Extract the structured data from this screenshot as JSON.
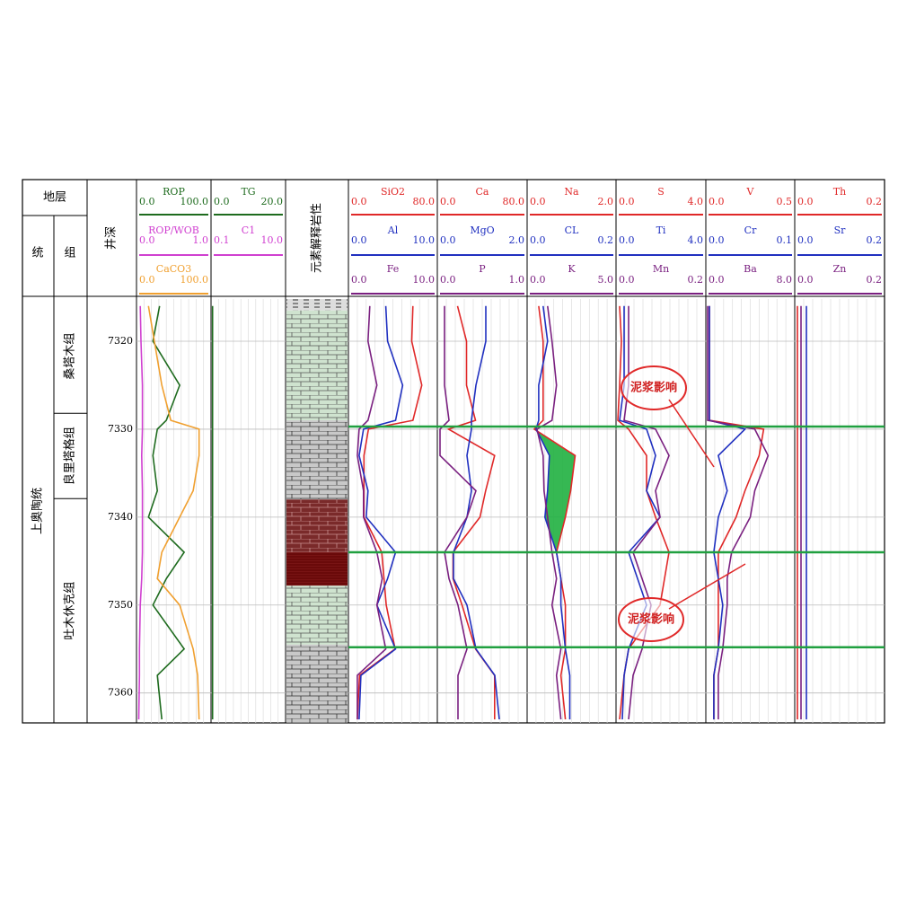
{
  "header": {
    "strata": "地层",
    "series_col": "统",
    "formation_col": "组",
    "depth": "井深",
    "lithology": "元素解释岩性"
  },
  "chart_data": {
    "type": "well-log",
    "depths": [
      7316,
      7320,
      7325,
      7329,
      7330,
      7333,
      7337,
      7340,
      7344,
      7347,
      7350,
      7355,
      7358,
      7363
    ],
    "ylim": [
      7315.2,
      7363.4
    ],
    "yticks": [
      7320,
      7330,
      7340,
      7350,
      7360
    ],
    "series_name": "上奥陶统",
    "formations": [
      {
        "name": "桑塔木组",
        "top": 7315.2,
        "bottom": 7328.2
      },
      {
        "name": "良里塔格组",
        "top": 7328.2,
        "bottom": 7337.9
      },
      {
        "name": "吐木休克组",
        "top": 7337.9,
        "bottom": 7363.4
      }
    ],
    "markers": [
      7329.7,
      7344,
      7354.8
    ],
    "lithology": [
      {
        "top": 7315.2,
        "bottom": 7316.5,
        "pattern": "dash"
      },
      {
        "top": 7316.5,
        "bottom": 7329,
        "pattern": "green"
      },
      {
        "top": 7329,
        "bottom": 7338,
        "pattern": "gray"
      },
      {
        "top": 7338,
        "bottom": 7344,
        "pattern": "red"
      },
      {
        "top": 7344,
        "bottom": 7347.8,
        "pattern": "maroon"
      },
      {
        "top": 7347.8,
        "bottom": 7354.5,
        "pattern": "green"
      },
      {
        "top": 7354.5,
        "bottom": 7363.4,
        "pattern": "gray"
      }
    ],
    "annotations": [
      {
        "text": "泥浆影响"
      },
      {
        "text": "泥浆影响"
      }
    ],
    "tracks": [
      {
        "curves": [
          {
            "name": "ROP",
            "color": "#1e6b1e",
            "min": {
              "value": 0,
              "label": "0.0"
            },
            "max": {
              "value": 100,
              "label": "100.0"
            },
            "values": [
              31,
              22,
              58,
              40,
              28,
              22,
              28,
              16,
              64,
              40,
              22,
              64,
              28,
              34
            ]
          },
          {
            "name": "ROP/WOB",
            "color": "#d040d0",
            "min": {
              "value": 0,
              "label": "0.0"
            },
            "max": {
              "value": 1,
              "label": "1.0"
            },
            "values": [
              0.05,
              0.06,
              0.08,
              0.08,
              0.08,
              0.07,
              0.08,
              0.08,
              0.08,
              0.07,
              0.05,
              0.04,
              0.04,
              0.03
            ]
          },
          {
            "name": "CaCO3",
            "color": "#f0a030",
            "min": {
              "value": 0,
              "label": "0.0"
            },
            "max": {
              "value": 100,
              "label": "100.0"
            },
            "values": [
              16,
              24,
              34,
              46,
              84,
              84,
              76,
              58,
              34,
              28,
              58,
              76,
              82,
              84
            ]
          }
        ]
      },
      {
        "curves": [
          {
            "name": "TG",
            "color": "#1e6b1e",
            "min": {
              "value": 0,
              "label": "0.0"
            },
            "max": {
              "value": 20,
              "label": "20.0"
            },
            "values": [
              0.4,
              0.4,
              0.4,
              0.4,
              0.4,
              0.4,
              0.4,
              0.4,
              0.4,
              0.4,
              0.4,
              0.4,
              0.4,
              0.4
            ]
          },
          {
            "name": "C1",
            "color": "#d040d0",
            "min": {
              "value": 0.1,
              "label": "0.1"
            },
            "max": {
              "value": 10,
              "label": "10.0"
            },
            "values": []
          }
        ]
      },
      {
        "curves": [
          {
            "name": "SiO2",
            "color": "#e02828",
            "min": {
              "value": 0,
              "label": "0.0"
            },
            "max": {
              "value": 80,
              "label": "80.0"
            },
            "values": [
              58,
              57,
              66,
              58,
              18,
              14,
              14,
              14,
              30,
              32,
              34,
              42,
              10,
              8
            ]
          },
          {
            "name": "Al",
            "color": "#2030c0",
            "min": {
              "value": 0,
              "label": "0.0"
            },
            "max": {
              "value": 10,
              "label": "10.0"
            },
            "values": [
              4.2,
              4.4,
              6.1,
              5.3,
              1.7,
              1.2,
              2.2,
              2.0,
              5.3,
              4.4,
              3.2,
              5.3,
              1.4,
              1.2
            ]
          },
          {
            "name": "Fe",
            "color": "#7a2080",
            "min": {
              "value": 0,
              "label": "0.0"
            },
            "max": {
              "value": 10,
              "label": "10.0"
            },
            "values": [
              2.4,
              2.2,
              3.2,
              2.2,
              1.2,
              1.0,
              1.7,
              1.7,
              3.2,
              3.8,
              3.2,
              4.2,
              1.0,
              1.0
            ]
          }
        ]
      },
      {
        "curves": [
          {
            "name": "Ca",
            "color": "#e02828",
            "min": {
              "value": 0,
              "label": "0.0"
            },
            "max": {
              "value": 80,
              "label": "80.0"
            },
            "values": [
              18,
              26,
              26,
              34,
              10,
              51,
              43,
              38,
              14,
              14,
              22,
              34,
              51,
              51
            ]
          },
          {
            "name": "MgO",
            "color": "#2030c0",
            "min": {
              "value": 0,
              "label": "0.0"
            },
            "max": {
              "value": 2,
              "label": "2.0"
            },
            "values": [
              1.08,
              1.08,
              0.86,
              0.76,
              0.76,
              0.66,
              0.76,
              0.66,
              0.36,
              0.36,
              0.66,
              0.86,
              1.28,
              1.38
            ]
          },
          {
            "name": "P",
            "color": "#7a2080",
            "min": {
              "value": 0,
              "label": "0.0"
            },
            "max": {
              "value": 1,
              "label": "1.0"
            },
            "values": [
              0.08,
              0.08,
              0.08,
              0.13,
              0.03,
              0.03,
              0.43,
              0.33,
              0.08,
              0.13,
              0.23,
              0.33,
              0.23,
              0.23
            ]
          }
        ]
      },
      {
        "curves": [
          {
            "name": "Na",
            "color": "#e02828",
            "min": {
              "value": 0,
              "label": "0.0"
            },
            "max": {
              "value": 2,
              "label": "2.0"
            },
            "values": [
              0.26,
              0.36,
              0.36,
              0.36,
              0.16,
              1.08,
              0.98,
              0.86,
              0.66,
              0.76,
              0.86,
              0.86,
              0.76,
              0.86
            ]
          },
          {
            "name": "CL",
            "color": "#2030c0",
            "min": {
              "value": 0,
              "label": "0.0"
            },
            "max": {
              "value": 0.2,
              "label": "0.2"
            },
            "values": [
              0.036,
              0.046,
              0.026,
              0.026,
              0.02,
              0.05,
              0.046,
              0.04,
              0.066,
              0.076,
              0.076,
              0.086,
              0.096,
              0.096
            ]
          },
          {
            "name": "K",
            "color": "#7a2080",
            "min": {
              "value": 0,
              "label": "0.0"
            },
            "max": {
              "value": 5,
              "label": "5.0"
            },
            "values": [
              1.15,
              1.4,
              1.65,
              1.4,
              0.55,
              0.9,
              0.95,
              1.15,
              1.4,
              1.65,
              1.4,
              1.9,
              1.65,
              1.9
            ]
          }
        ]
      },
      {
        "curves": [
          {
            "name": "S",
            "color": "#e02828",
            "min": {
              "value": 0,
              "label": "0.0"
            },
            "max": {
              "value": 4,
              "label": "4.0"
            },
            "values": [
              0.16,
              0.24,
              0.16,
              0.08,
              0.56,
              1.36,
              1.36,
              1.76,
              2.36,
              2.16,
              1.96,
              0.56,
              0.36,
              0.16
            ]
          },
          {
            "name": "Ti",
            "color": "#2030c0",
            "min": {
              "value": 0,
              "label": "0.0"
            },
            "max": {
              "value": 4,
              "label": "4.0"
            },
            "values": [
              0.36,
              0.36,
              0.36,
              0.16,
              1.36,
              1.76,
              1.36,
              1.96,
              0.56,
              0.96,
              1.36,
              0.56,
              0.36,
              0.28
            ]
          },
          {
            "name": "Mn",
            "color": "#7a2080",
            "min": {
              "value": 0,
              "label": "0.0"
            },
            "max": {
              "value": 0.2,
              "label": "0.2"
            },
            "values": [
              0.028,
              0.028,
              0.028,
              0.018,
              0.088,
              0.118,
              0.088,
              0.098,
              0.038,
              0.058,
              0.078,
              0.058,
              0.038,
              0.028
            ]
          }
        ]
      },
      {
        "curves": [
          {
            "name": "V",
            "color": "#e02828",
            "min": {
              "value": 0,
              "label": "0.0"
            },
            "max": {
              "value": 0.5,
              "label": "0.5"
            },
            "values": [
              0.02,
              0.02,
              0.02,
              0.02,
              0.325,
              0.3,
              0.22,
              0.17,
              0.07,
              0.07,
              0.07,
              0.07,
              0.045,
              0.045
            ]
          },
          {
            "name": "Cr",
            "color": "#2030c0",
            "min": {
              "value": 0,
              "label": "0.0"
            },
            "max": {
              "value": 0.1,
              "label": "0.1"
            },
            "values": [
              0.004,
              0.004,
              0.004,
              0.004,
              0.044,
              0.014,
              0.024,
              0.014,
              0.009,
              0.014,
              0.019,
              0.014,
              0.009,
              0.009
            ]
          },
          {
            "name": "Ba",
            "color": "#7a2080",
            "min": {
              "value": 0,
              "label": "0.0"
            },
            "max": {
              "value": 8,
              "label": "8.0"
            },
            "values": [
              0.16,
              0.16,
              0.16,
              0.16,
              4.4,
              5.6,
              4.4,
              4.0,
              2.32,
              1.92,
              1.92,
              1.52,
              1.12,
              1.12
            ]
          }
        ]
      },
      {
        "curves": [
          {
            "name": "Th",
            "color": "#e02828",
            "min": {
              "value": 0,
              "label": "0.0"
            },
            "max": {
              "value": 0.2,
              "label": "0.2"
            },
            "values": [
              0.006,
              0.006,
              0.006,
              0.006,
              0.006,
              0.006,
              0.006,
              0.006,
              0.006,
              0.006,
              0.006,
              0.006,
              0.006,
              0.006
            ]
          },
          {
            "name": "Sr",
            "color": "#2030c0",
            "min": {
              "value": 0,
              "label": "0.0"
            },
            "max": {
              "value": 0.2,
              "label": "0.2"
            },
            "values": [
              0.026,
              0.026,
              0.026,
              0.026,
              0.026,
              0.026,
              0.026,
              0.026,
              0.026,
              0.026,
              0.026,
              0.026,
              0.026,
              0.026
            ]
          },
          {
            "name": "Zn",
            "color": "#7a2080",
            "min": {
              "value": 0,
              "label": "0.0"
            },
            "max": {
              "value": 0.2,
              "label": "0.2"
            },
            "values": [
              0.014,
              0.014,
              0.014,
              0.014,
              0.014,
              0.014,
              0.014,
              0.014,
              0.014,
              0.014,
              0.014,
              0.014,
              0.014,
              0.014
            ]
          }
        ]
      }
    ]
  }
}
